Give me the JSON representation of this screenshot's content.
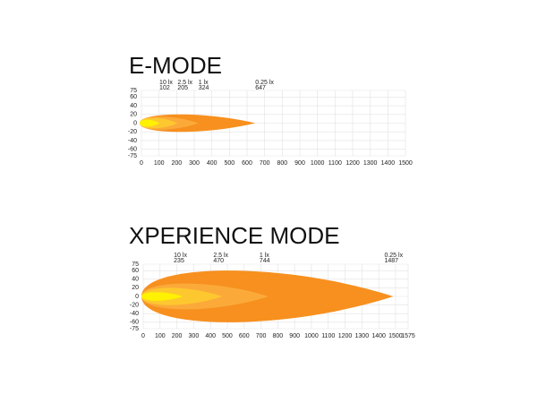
{
  "chart_data": [
    {
      "type": "beam",
      "title": "E-MODE",
      "xlim": [
        0,
        1500
      ],
      "xticks": [
        0,
        100,
        200,
        300,
        400,
        500,
        600,
        700,
        800,
        900,
        1000,
        1100,
        1200,
        1300,
        1400,
        1500
      ],
      "ylim": [
        -75,
        75
      ],
      "yticks": [
        75,
        60,
        40,
        20,
        0,
        -20,
        -40,
        -60,
        -75
      ],
      "grid": true,
      "isolux": [
        {
          "label": "10 lx",
          "distance": 102,
          "halfwidth": 8,
          "color": "#fff200"
        },
        {
          "label": "2.5 lx",
          "distance": 205,
          "halfwidth": 12,
          "color": "#fdc82f"
        },
        {
          "label": "1 lx",
          "distance": 324,
          "halfwidth": 15,
          "color": "#fbaa3a"
        },
        {
          "label": "0.25 lx",
          "distance": 647,
          "halfwidth": 20,
          "color": "#f7901e"
        }
      ]
    },
    {
      "type": "beam",
      "title": "XPERIENCE MODE",
      "xlim": [
        0,
        1575
      ],
      "xticks": [
        0,
        100,
        200,
        300,
        400,
        500,
        600,
        700,
        800,
        900,
        1000,
        1100,
        1200,
        1300,
        1400,
        1500,
        1575
      ],
      "ylim": [
        -75,
        75
      ],
      "yticks": [
        75,
        60,
        40,
        20,
        0,
        -20,
        -40,
        -60,
        -75
      ],
      "grid": true,
      "isolux": [
        {
          "label": "10 lx",
          "distance": 235,
          "halfwidth": 10,
          "color": "#fff200"
        },
        {
          "label": "2.5 lx",
          "distance": 470,
          "halfwidth": 20,
          "color": "#fdc82f"
        },
        {
          "label": "1 lx",
          "distance": 744,
          "halfwidth": 30,
          "color": "#fbaa3a"
        },
        {
          "label": "0.25 lx",
          "distance": 1487,
          "halfwidth": 60,
          "color": "#f7901e"
        }
      ]
    }
  ]
}
